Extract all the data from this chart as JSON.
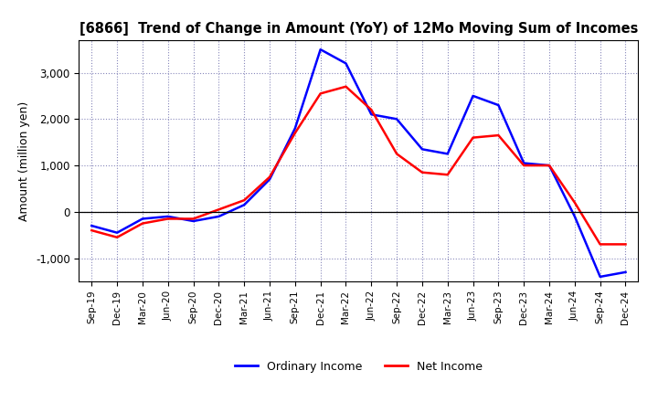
{
  "title": "[6866]  Trend of Change in Amount (YoY) of 12Mo Moving Sum of Incomes",
  "ylabel": "Amount (million yen)",
  "x_labels": [
    "Sep-19",
    "Dec-19",
    "Mar-20",
    "Jun-20",
    "Sep-20",
    "Dec-20",
    "Mar-21",
    "Jun-21",
    "Sep-21",
    "Dec-21",
    "Mar-22",
    "Jun-22",
    "Sep-22",
    "Dec-22",
    "Mar-23",
    "Jun-23",
    "Sep-23",
    "Dec-23",
    "Mar-24",
    "Jun-24",
    "Sep-24",
    "Dec-24"
  ],
  "ordinary_income": [
    -300,
    -450,
    -150,
    -100,
    -200,
    -100,
    150,
    700,
    1800,
    3500,
    3200,
    2100,
    2000,
    1350,
    1250,
    2500,
    2300,
    1050,
    1000,
    -100,
    -1400,
    -1300
  ],
  "net_income": [
    -400,
    -550,
    -250,
    -150,
    -150,
    50,
    250,
    750,
    1700,
    2550,
    2700,
    2200,
    1250,
    850,
    800,
    1600,
    1650,
    1000,
    1000,
    200,
    -700,
    -700
  ],
  "ordinary_income_color": "#0000FF",
  "net_income_color": "#FF0000",
  "ylim": [
    -1500,
    3700
  ],
  "yticks": [
    -1000,
    0,
    1000,
    2000,
    3000
  ],
  "background_color": "#FFFFFF",
  "grid_color": "#8888BB",
  "legend_labels": [
    "Ordinary Income",
    "Net Income"
  ]
}
